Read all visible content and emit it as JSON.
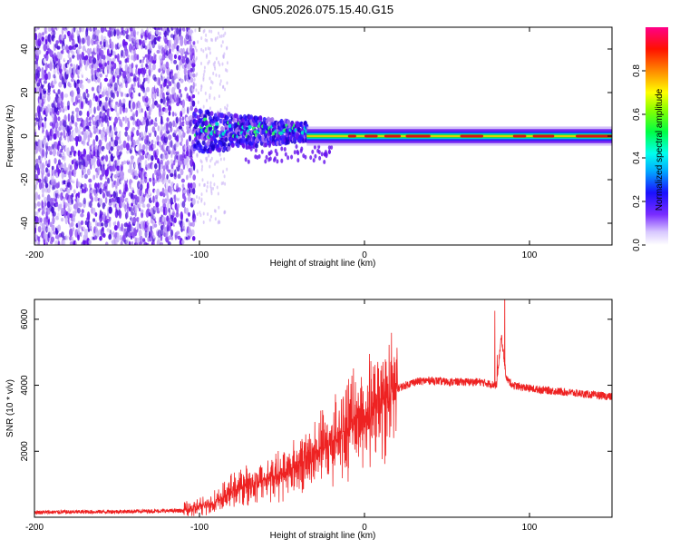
{
  "title": "GN05.2026.075.15.40.G15",
  "colors": {
    "snr_line": "#ee2222",
    "signal_core": "#dd1111",
    "signal_mid": "#22dd44",
    "signal_halo": "#6611ee",
    "signal_faint": "#c9b3f7"
  },
  "chart_data": [
    {
      "name": "spectrogram",
      "type": "heatmap",
      "xlabel": "Height of straight line (km)",
      "ylabel": "Frequency (Hz)",
      "xlim": [
        -200,
        150
      ],
      "ylim": [
        -50,
        50
      ],
      "xticks": [
        -200,
        -100,
        0,
        100
      ],
      "xtick_labels": [
        "-200",
        "-100",
        "0",
        "100"
      ],
      "yticks": [
        -40,
        -20,
        0,
        20,
        40
      ],
      "ytick_labels": [
        "-40",
        "-20",
        "0",
        "20",
        "40"
      ],
      "colorbar": {
        "label": "Normalized spectral amplitude",
        "range": [
          0,
          1
        ],
        "ticks": [
          0.0,
          0.2,
          0.4,
          0.6,
          0.8
        ],
        "tick_labels": [
          "0.0",
          "0.2",
          "0.4",
          "0.6",
          "0.8"
        ]
      },
      "regions": [
        {
          "desc": "noise",
          "x_range": [
            -200,
            -103
          ],
          "freq_range": [
            -50,
            50
          ],
          "amplitude": 0.15
        },
        {
          "desc": "transition",
          "x_range": [
            -103,
            -35
          ],
          "freq_center": 3,
          "freq_halfwidth": 10,
          "amplitude": 0.35
        },
        {
          "desc": "stable",
          "x_range": [
            -35,
            150
          ],
          "freq_center": 0,
          "freq_halfwidth": 2,
          "amplitude": 0.95
        }
      ]
    },
    {
      "name": "snr",
      "type": "line",
      "xlabel": "Height of straight line (km)",
      "ylabel": "SNR (10 * v/v)",
      "xlim": [
        -200,
        150
      ],
      "ylim": [
        0,
        6600
      ],
      "xticks": [
        -200,
        -100,
        0,
        100
      ],
      "xtick_labels": [
        "-200",
        "-100",
        "0",
        "100"
      ],
      "yticks": [
        2000,
        4000,
        6000
      ],
      "ytick_labels": [
        "2000",
        "4000",
        "6000"
      ],
      "series": [
        {
          "name": "SNR",
          "x": [
            -200,
            -150,
            -110,
            -100,
            -90,
            -80,
            -70,
            -60,
            -50,
            -40,
            -30,
            -20,
            -10,
            0,
            10,
            20,
            30,
            40,
            50,
            60,
            70,
            80,
            83,
            86,
            90,
            100,
            110,
            120,
            130,
            140,
            150
          ],
          "values": [
            150,
            170,
            200,
            300,
            450,
            800,
            1000,
            1150,
            1300,
            1600,
            1900,
            2300,
            2700,
            3100,
            3400,
            3900,
            4100,
            4150,
            4100,
            4100,
            4100,
            4000,
            5500,
            4200,
            4000,
            3900,
            3850,
            3800,
            3750,
            3700,
            3650
          ]
        }
      ]
    }
  ]
}
